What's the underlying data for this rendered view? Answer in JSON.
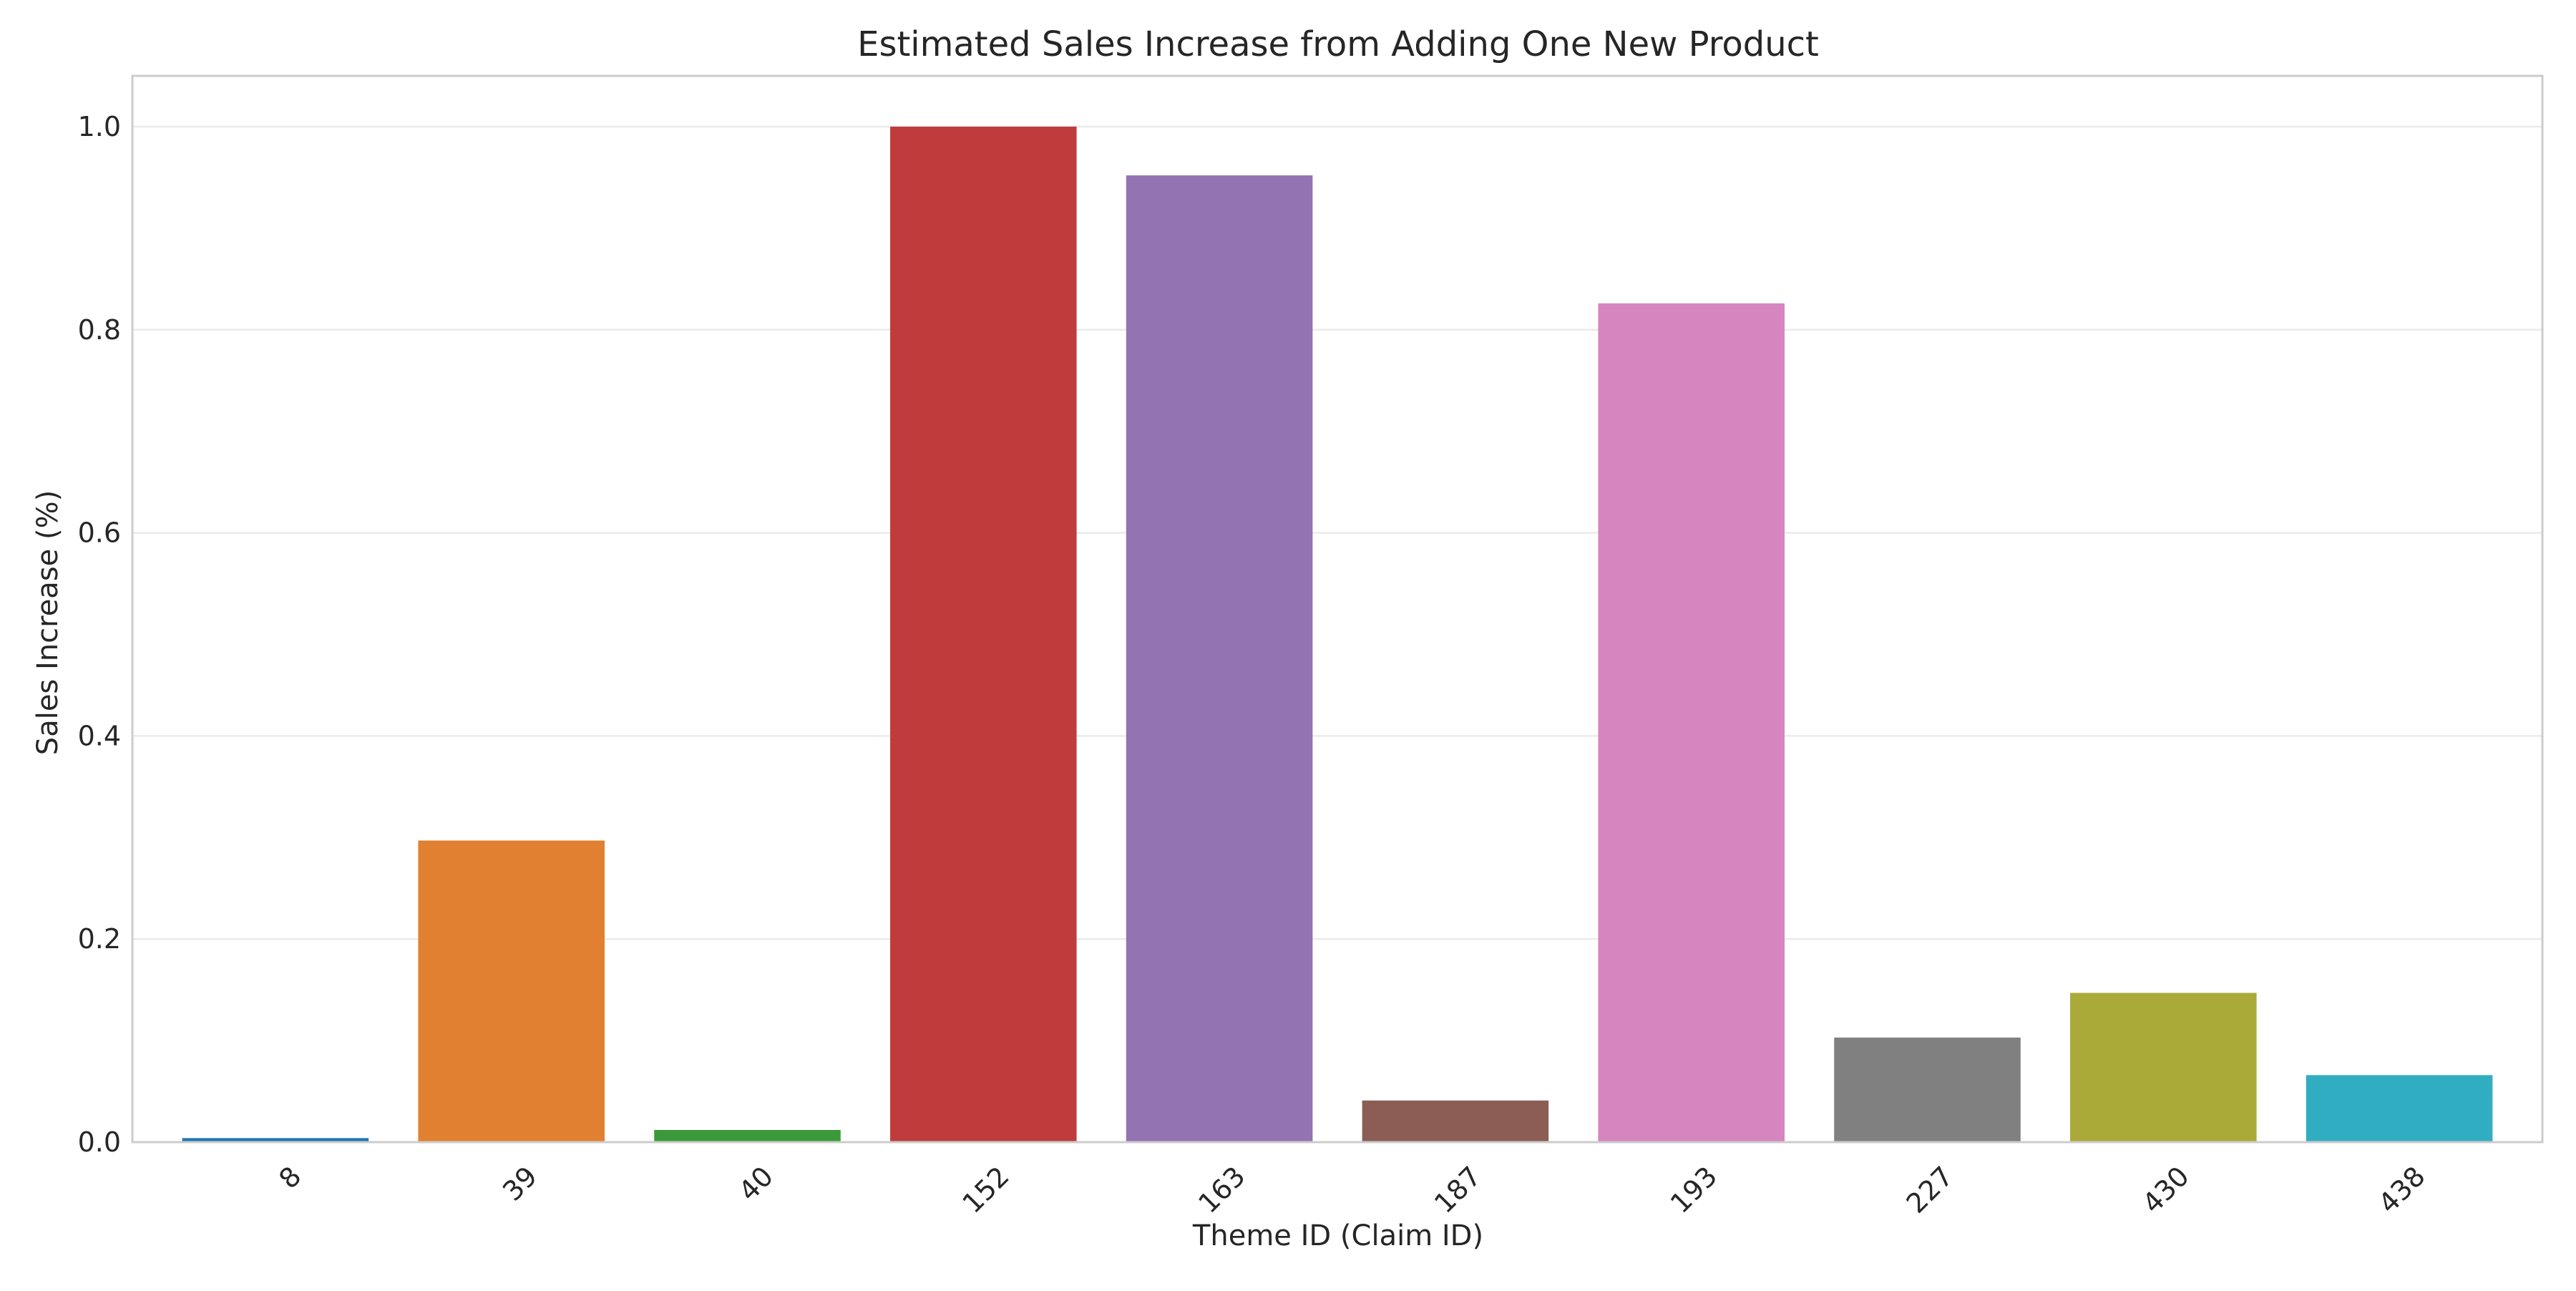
{
  "chart_data": {
    "type": "bar",
    "title": "Estimated Sales Increase from Adding One New Product",
    "xlabel": "Theme ID (Claim ID)",
    "ylabel": "Sales Increase (%)",
    "categories": [
      "8",
      "39",
      "40",
      "152",
      "163",
      "187",
      "193",
      "227",
      "430",
      "438"
    ],
    "values": [
      0.004,
      0.297,
      0.012,
      1.0,
      0.952,
      0.041,
      0.826,
      0.103,
      0.147,
      0.066
    ],
    "colors": [
      "#1f77b4",
      "#e08030",
      "#3a9a3a",
      "#c03c3c",
      "#9373b1",
      "#8b5d55",
      "#d685be",
      "#808080",
      "#aaaa38",
      "#30adc0"
    ],
    "ylim": [
      0,
      1.05
    ],
    "yticks": [
      "0.0",
      "0.2",
      "0.4",
      "0.6",
      "0.8",
      "1.0"
    ],
    "grid": true,
    "gridColor": "#ebebeb",
    "frameColor": "#cccccc"
  }
}
